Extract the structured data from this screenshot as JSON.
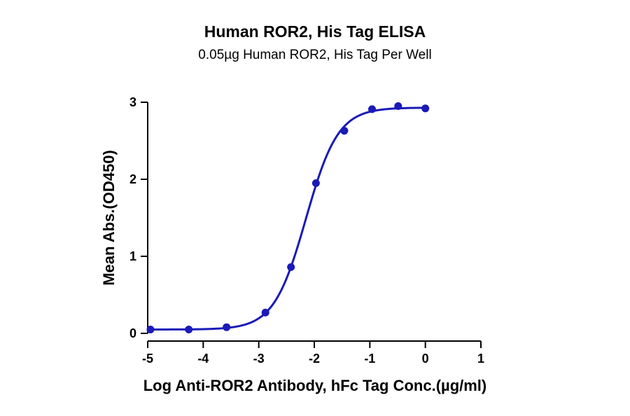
{
  "chart_data": {
    "type": "scatter",
    "title": "Human ROR2, His Tag ELISA",
    "subtitle": "0.05µg Human ROR2, His Tag Per Well",
    "xlabel": "Log Anti-ROR2 Antibody, hFc Tag Conc.(µg/ml)",
    "ylabel": "Mean Abs.(OD450)",
    "xlim": [
      -5,
      1
    ],
    "ylim": [
      0,
      3
    ],
    "xticks": [
      -5,
      -4,
      -3,
      -2,
      -1,
      0,
      1
    ],
    "yticks": [
      0,
      1,
      2,
      3
    ],
    "grid": false,
    "series": [
      {
        "color": "#1a1ab8",
        "x": [
          -4.95,
          -4.26,
          -3.58,
          -2.88,
          -2.42,
          -1.97,
          -1.46,
          -0.96,
          -0.49,
          0.0
        ],
        "y": [
          0.05,
          0.05,
          0.08,
          0.27,
          0.86,
          1.95,
          2.63,
          2.91,
          2.95,
          2.92
        ],
        "fit": {
          "model": "4PL",
          "bottom": 0.05,
          "top": 2.93,
          "logEC50": -2.15,
          "hillslope": 1.5
        }
      }
    ]
  }
}
